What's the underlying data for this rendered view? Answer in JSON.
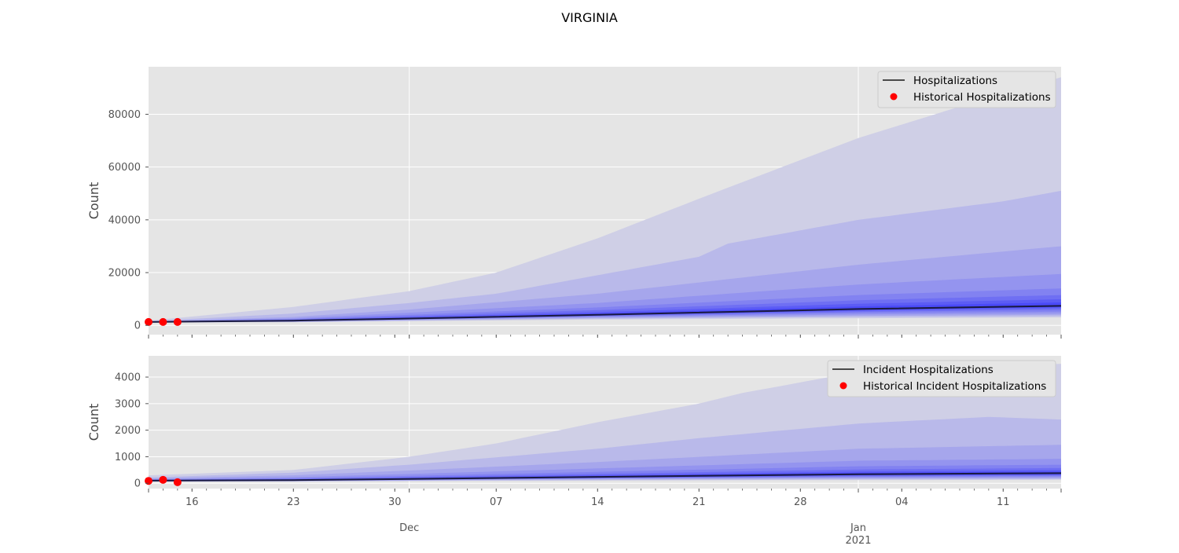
{
  "chart_data": {
    "title": "VIRGINIA",
    "x_start": "2020-11-13",
    "x_end": "2021-01-15",
    "x_major_ticks": [
      {
        "date": "2020-11-16",
        "label": "16"
      },
      {
        "date": "2020-11-23",
        "label": "23"
      },
      {
        "date": "2020-11-30",
        "label": "30"
      },
      {
        "date": "2020-12-07",
        "label": "07"
      },
      {
        "date": "2020-12-14",
        "label": "14"
      },
      {
        "date": "2020-12-21",
        "label": "21"
      },
      {
        "date": "2020-12-28",
        "label": "28"
      },
      {
        "date": "2021-01-04",
        "label": "04"
      },
      {
        "date": "2021-01-11",
        "label": "11"
      }
    ],
    "x_month_ticks": [
      {
        "date": "2020-12-01",
        "label": "Dec"
      },
      {
        "date": "2021-01-01",
        "label": "Jan",
        "sublabel": "2021"
      }
    ],
    "band_colors": [
      "#cfcfe6",
      "#b9b9ea",
      "#a6a6ec",
      "#9494ef",
      "#8282f1",
      "#6f6ff3",
      "#5c5cf5",
      "#4a4af7"
    ],
    "line_color": "#1a1a40",
    "point_color": "#ff0000",
    "panels": [
      {
        "type": "line",
        "ylabel": "Count",
        "ylim": [
          -3500,
          98000
        ],
        "yticks": [
          0,
          20000,
          40000,
          60000,
          80000
        ],
        "legend_position": "top-right",
        "legend": [
          {
            "kind": "line",
            "label": "Hospitalizations"
          },
          {
            "kind": "point",
            "label": "Historical Hospitalizations"
          }
        ],
        "median": {
          "dates": [
            "2020-11-13",
            "2020-11-23",
            "2020-12-01",
            "2020-12-14",
            "2021-01-01",
            "2021-01-15"
          ],
          "values": [
            1300,
            1800,
            2600,
            4000,
            6200,
            7400
          ]
        },
        "bands": [
          {
            "dates": [
              "2020-11-13",
              "2020-11-23",
              "2020-12-01",
              "2020-12-07",
              "2020-12-14",
              "2020-12-21",
              "2021-01-01",
              "2021-01-11",
              "2021-01-15"
            ],
            "upper": [
              1800,
              7000,
              13000,
              20000,
              33000,
              48000,
              71000,
              88000,
              94000
            ],
            "lower": [
              1100,
              1200,
              1600,
              1900,
              2200,
              2400,
              2700,
              2900,
              3000
            ]
          },
          {
            "dates": [
              "2020-11-13",
              "2020-11-23",
              "2020-12-01",
              "2020-12-07",
              "2020-12-14",
              "2020-12-21",
              "2020-12-23",
              "2021-01-01",
              "2021-01-11",
              "2021-01-15"
            ],
            "upper": [
              1600,
              4500,
              8500,
              12000,
              19000,
              26000,
              31000,
              40000,
              47000,
              51000
            ],
            "lower": [
              1150,
              1300,
              1800,
              2100,
              2500,
              2800,
              2900,
              3200,
              3400,
              3500
            ]
          },
          {
            "dates": [
              "2020-11-13",
              "2020-11-23",
              "2020-12-01",
              "2020-12-14",
              "2021-01-01",
              "2021-01-15"
            ],
            "upper": [
              1500,
              3200,
              6000,
              12000,
              23000,
              30000
            ],
            "lower": [
              1200,
              1400,
              2000,
              2800,
              3600,
              4000
            ]
          },
          {
            "dates": [
              "2020-11-13",
              "2020-11-23",
              "2020-12-01",
              "2020-12-14",
              "2021-01-01",
              "2021-01-15"
            ],
            "upper": [
              1450,
              2700,
              4800,
              8500,
              15500,
              19500
            ],
            "lower": [
              1220,
              1500,
              2150,
              3100,
              4100,
              4500
            ]
          },
          {
            "dates": [
              "2020-11-13",
              "2020-11-23",
              "2020-12-01",
              "2020-12-14",
              "2021-01-01",
              "2021-01-15"
            ],
            "upper": [
              1400,
              2400,
              4000,
              6800,
              11500,
              14000
            ],
            "lower": [
              1240,
              1580,
              2280,
              3350,
              4600,
              5200
            ]
          },
          {
            "dates": [
              "2020-11-13",
              "2020-11-23",
              "2020-12-01",
              "2020-12-14",
              "2021-01-01",
              "2021-01-15"
            ],
            "upper": [
              1380,
              2200,
              3500,
              5800,
              9500,
              11500
            ],
            "lower": [
              1250,
              1650,
              2380,
              3550,
              5100,
              5900
            ]
          },
          {
            "dates": [
              "2020-11-13",
              "2020-11-23",
              "2020-12-01",
              "2020-12-14",
              "2021-01-01",
              "2021-01-15"
            ],
            "upper": [
              1350,
              2050,
              3100,
              5000,
              8200,
              9900
            ],
            "lower": [
              1260,
              1700,
              2460,
              3750,
              5500,
              6500
            ]
          },
          {
            "dates": [
              "2020-11-13",
              "2020-11-23",
              "2020-12-01",
              "2020-12-14",
              "2021-01-01",
              "2021-01-15"
            ],
            "upper": [
              1330,
              1950,
              2850,
              4500,
              7200,
              8700
            ],
            "lower": [
              1270,
              1750,
              2520,
              3850,
              5800,
              6900
            ]
          }
        ],
        "historical": {
          "dates": [
            "2020-11-13",
            "2020-11-14",
            "2020-11-15"
          ],
          "values": [
            1300,
            1300,
            1300
          ]
        }
      },
      {
        "type": "line",
        "ylabel": "Count",
        "ylim": [
          -200,
          4800
        ],
        "yticks": [
          0,
          1000,
          2000,
          3000,
          4000
        ],
        "legend_position": "top-right",
        "legend": [
          {
            "kind": "line",
            "label": "Incident Hospitalizations"
          },
          {
            "kind": "point",
            "label": "Historical Incident Hospitalizations"
          }
        ],
        "median": {
          "dates": [
            "2020-11-13",
            "2020-11-23",
            "2020-12-01",
            "2020-12-14",
            "2021-01-01",
            "2021-01-15"
          ],
          "values": [
            100,
            120,
            160,
            240,
            340,
            380
          ]
        },
        "bands": [
          {
            "dates": [
              "2020-11-13",
              "2020-11-23",
              "2020-12-01",
              "2020-12-07",
              "2020-12-14",
              "2020-12-21",
              "2020-12-24",
              "2021-01-01",
              "2021-01-15"
            ],
            "upper": [
              300,
              500,
              1000,
              1500,
              2300,
              3000,
              3400,
              4200,
              4500
            ],
            "lower": [
              60,
              70,
              80,
              90,
              100,
              110,
              115,
              120,
              130
            ]
          },
          {
            "dates": [
              "2020-11-13",
              "2020-11-23",
              "2020-12-01",
              "2020-12-14",
              "2020-12-21",
              "2021-01-01",
              "2021-01-10",
              "2021-01-15"
            ],
            "upper": [
              220,
              400,
              700,
              1300,
              1700,
              2250,
              2500,
              2400
            ],
            "lower": [
              65,
              75,
              95,
              120,
              130,
              145,
              150,
              155
            ]
          },
          {
            "dates": [
              "2020-11-13",
              "2020-11-23",
              "2020-12-01",
              "2020-12-14",
              "2021-01-01",
              "2021-01-15"
            ],
            "upper": [
              180,
              300,
              480,
              800,
              1300,
              1450
            ],
            "lower": [
              70,
              82,
              110,
              150,
              180,
              190
            ]
          },
          {
            "dates": [
              "2020-11-13",
              "2020-11-23",
              "2020-12-01",
              "2020-12-14",
              "2021-01-01",
              "2021-01-15"
            ],
            "upper": [
              150,
              230,
              350,
              560,
              850,
              920
            ],
            "lower": [
              75,
              90,
              120,
              170,
              210,
              225
            ]
          },
          {
            "dates": [
              "2020-11-13",
              "2020-11-23",
              "2020-12-01",
              "2020-12-14",
              "2021-01-01",
              "2021-01-15"
            ],
            "upper": [
              135,
              190,
              280,
              430,
              640,
              700
            ],
            "lower": [
              80,
              96,
              130,
              185,
              240,
              260
            ]
          },
          {
            "dates": [
              "2020-11-13",
              "2020-11-23",
              "2020-12-01",
              "2020-12-14",
              "2021-01-01",
              "2021-01-15"
            ],
            "upper": [
              122,
              165,
              235,
              355,
              520,
              575
            ],
            "lower": [
              84,
              102,
              138,
              200,
              265,
              290
            ]
          },
          {
            "dates": [
              "2020-11-13",
              "2020-11-23",
              "2020-12-01",
              "2020-12-14",
              "2021-01-01",
              "2021-01-15"
            ],
            "upper": [
              114,
              148,
              205,
              305,
              445,
              495
            ],
            "lower": [
              88,
              108,
              145,
              212,
              290,
              315
            ]
          },
          {
            "dates": [
              "2020-11-13",
              "2020-11-23",
              "2020-12-01",
              "2020-12-14",
              "2021-01-01",
              "2021-01-15"
            ],
            "upper": [
              108,
              136,
              185,
              272,
              395,
              440
            ],
            "lower": [
              92,
              113,
              152,
              225,
              310,
              340
            ]
          }
        ],
        "historical": {
          "dates": [
            "2020-11-13",
            "2020-11-14",
            "2020-11-15"
          ],
          "values": [
            90,
            130,
            40
          ]
        }
      }
    ]
  }
}
